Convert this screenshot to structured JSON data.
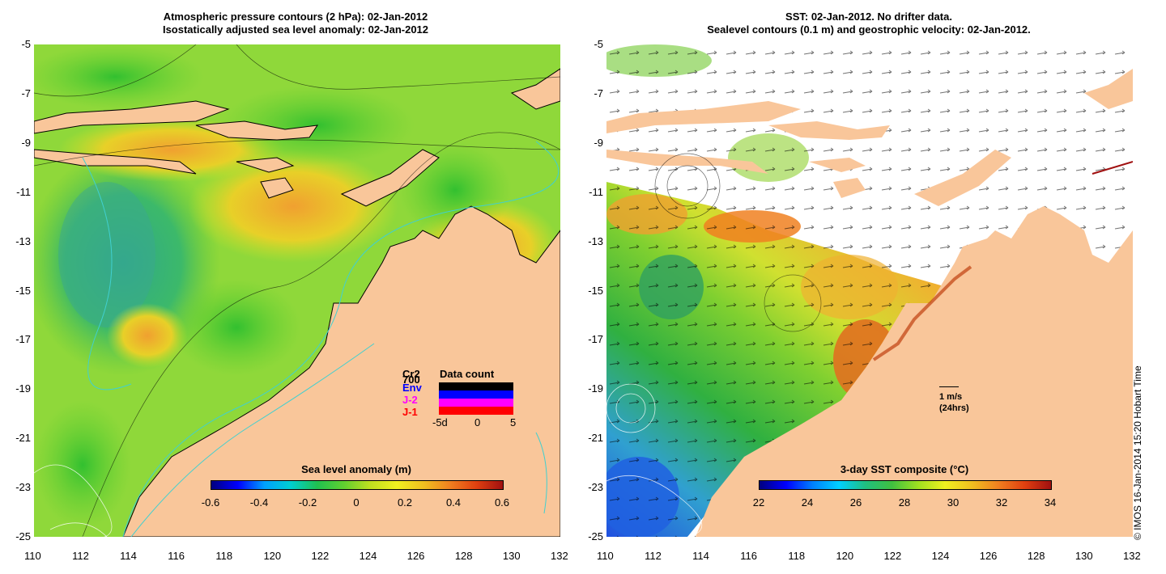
{
  "left_panel": {
    "title_line1": "Atmospheric pressure contours (2 hPa): 02-Jan-2012",
    "title_line2": "Isostatically adjusted sea level anomaly: 02-Jan-2012",
    "colorbar_title": "Sea level anomaly (m)",
    "colorbar_ticks": [
      "-0.6",
      "-0.4",
      "-0.2",
      "0",
      "0.2",
      "0.4",
      "0.6"
    ],
    "data_count": {
      "title": "Data count",
      "satellites": [
        "Cr2",
        "700",
        "Env",
        "J-2",
        "J-1"
      ],
      "axis_labels": [
        "-5d",
        "0",
        "5"
      ]
    }
  },
  "right_panel": {
    "title_line1": "SST: 02-Jan-2012. No drifter data.",
    "title_line2": "Sealevel contours (0.1 m) and geostrophic velocity: 02-Jan-2012.",
    "colorbar_title": "3-day SST composite (°C)",
    "colorbar_ticks": [
      "22",
      "24",
      "26",
      "28",
      "30",
      "32",
      "34"
    ],
    "velocity_scale": {
      "label": "1 m/s",
      "sublabel": "(24hrs)"
    }
  },
  "axes": {
    "x_ticks": [
      "110",
      "112",
      "114",
      "116",
      "118",
      "120",
      "122",
      "124",
      "126",
      "128",
      "130",
      "132"
    ],
    "y_ticks": [
      "-5",
      "-7",
      "-9",
      "-11",
      "-13",
      "-15",
      "-17",
      "-19",
      "-21",
      "-23",
      "-25"
    ]
  },
  "copyright": "© IMOS 16-Jan-2014 15:20 Hobart Time",
  "colors": {
    "land": "#f9c69a",
    "ocean_green": "#6ad43a",
    "ocean_yellow": "#d2e62a",
    "ocean_orange": "#f0a830",
    "ocean_cyan": "#3fb88c"
  }
}
